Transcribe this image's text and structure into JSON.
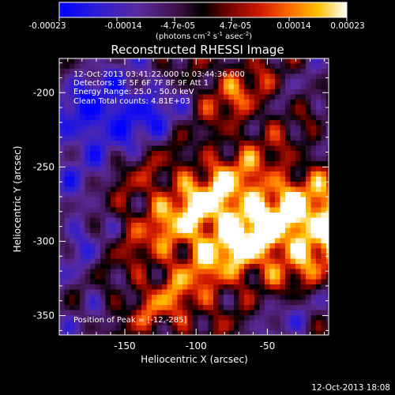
{
  "colorbar": {
    "ticks": [
      "-0.00023",
      "-0.00014",
      "-4.7e-05",
      "4.7e-05",
      "0.00014",
      "0.00023"
    ],
    "unit_label_parts": [
      "(photons cm",
      "-2",
      " s",
      "-1",
      " asec",
      "-2",
      ")"
    ]
  },
  "title": "Reconstructed RHESSI Image",
  "info": {
    "time_range": "12-Oct-2013 03:41:22.000 to 03:44:36.000",
    "detectors": "Detectors: 3F 5F 6F 7F 8F 9F  Att 1",
    "energy": "Energy Range: 25.0 - 50.0 keV",
    "clean": "Clean     Total counts: 4.81E+03",
    "peak": "Position of Peak = [-12,-285]"
  },
  "axes": {
    "xlabel": "Heliocentric X (arcsec)",
    "ylabel": "Heliocentric Y (arcsec)",
    "xticks": [
      {
        "value": -150,
        "label": "-150"
      },
      {
        "value": -100,
        "label": "-100"
      },
      {
        "value": -50,
        "label": "-50"
      }
    ],
    "yticks": [
      {
        "value": -200,
        "label": "-200"
      },
      {
        "value": -250,
        "label": "-250"
      },
      {
        "value": -300,
        "label": "-300"
      },
      {
        "value": -350,
        "label": "-350"
      }
    ],
    "xlim": [
      -196,
      -7
    ],
    "ylim": [
      -363,
      -177
    ]
  },
  "timestamp": "12-Oct-2013 18:08",
  "colors": {
    "background": "#000000",
    "colormap": [
      "#0000ff",
      "#3a1cc8",
      "#5a2a9a",
      "#4a1a5a",
      "#300818",
      "#000000",
      "#5a0000",
      "#b01000",
      "#e83a00",
      "#ff8a00",
      "#ffd010",
      "#ffffff"
    ]
  },
  "chart_data": {
    "type": "heatmap",
    "title": "Reconstructed RHESSI Image",
    "xlabel": "Heliocentric X (arcsec)",
    "ylabel": "Heliocentric Y (arcsec)",
    "xlim": [
      -196,
      -7
    ],
    "ylim": [
      -363,
      -177
    ],
    "value_range": [
      -0.00023,
      0.00023
    ],
    "peak": [
      -12,
      -285
    ]
  }
}
